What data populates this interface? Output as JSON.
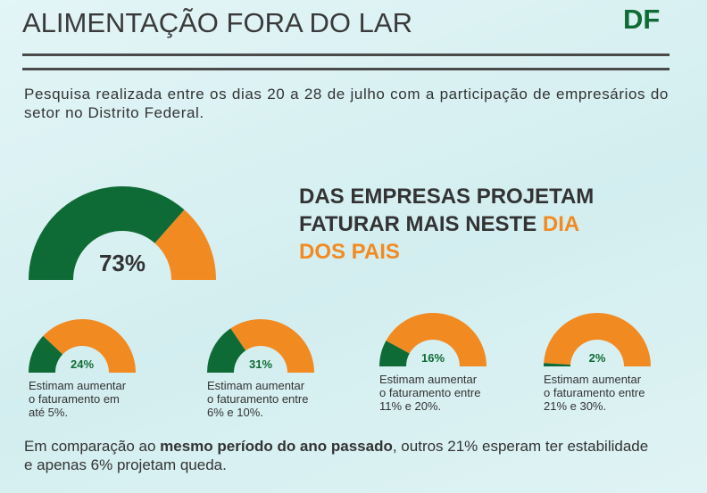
{
  "header": {
    "title": "ALIMENTAÇÃO FORA DO LAR",
    "region": "DF"
  },
  "intro": "Pesquisa realizada entre os dias 20 a 28 de julho com a participação de empresários do setor no Distrito Federal.",
  "headline": {
    "text": "DAS EMPRESAS PROJETAM FATURAR MAIS NESTE",
    "highlight": "DIA DOS PAIS"
  },
  "main_gauge": {
    "value": 73,
    "label": "73%",
    "color": "#0f6b35",
    "track_color": "#f28a22"
  },
  "gauges": [
    {
      "value": 24,
      "label": "24%",
      "caption": "Estimam aumentar o faturamento em até 5%."
    },
    {
      "value": 31,
      "label": "31%",
      "caption": "Estimam aumentar o faturamento entre 6% e 10%."
    },
    {
      "value": 16,
      "label": "16%",
      "caption": "Estimam aumentar o faturamento entre 11% e 20%."
    },
    {
      "value": 2,
      "label": "2%",
      "caption": "Estimam aumentar o faturamento entre 21% e 30%."
    }
  ],
  "footer": {
    "before": "Em comparação ao",
    "bold": "mesmo período do ano passado",
    "after": ", outros 21% esperam ter estabilidade e apenas 6% projetam queda."
  }
}
